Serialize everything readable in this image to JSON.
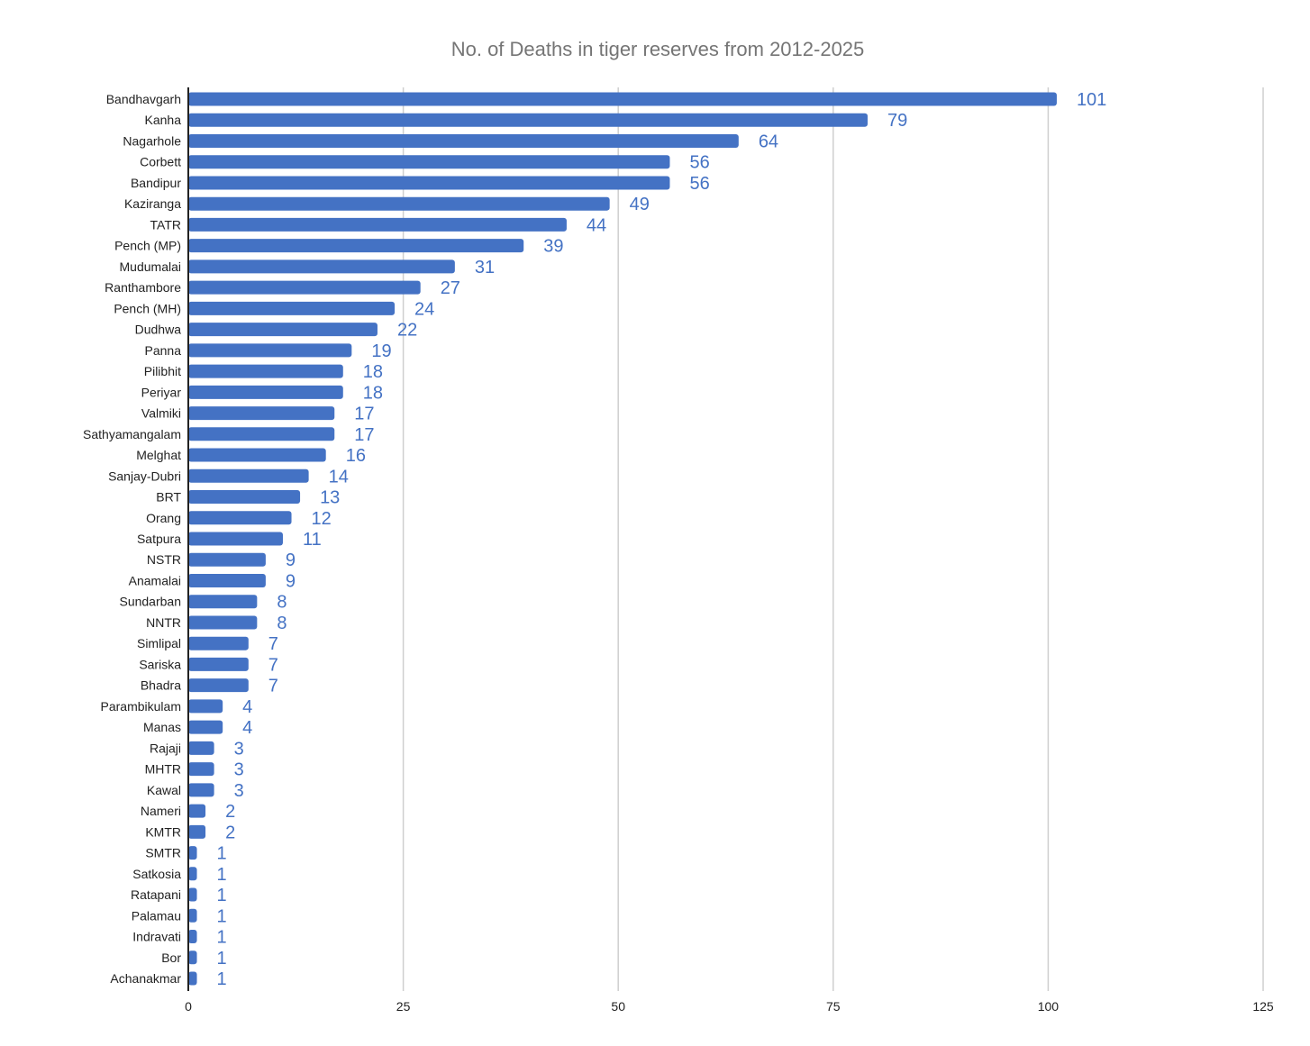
{
  "chart_data": {
    "type": "bar",
    "orientation": "horizontal",
    "title": "No. of Deaths in tiger reserves from 2012-2025",
    "xlabel": "",
    "ylabel": "",
    "xlim": [
      0,
      125
    ],
    "x_ticks": [
      0,
      25,
      50,
      75,
      100,
      125
    ],
    "grid": "vertical",
    "legend": "none",
    "bar_color": "#4472C4",
    "label_color": "#4472C4",
    "categories": [
      "Bandhavgarh",
      "Kanha",
      "Nagarhole",
      "Corbett",
      "Bandipur",
      "Kaziranga",
      "TATR",
      "Pench (MP)",
      "Mudumalai",
      "Ranthambore",
      "Pench (MH)",
      "Dudhwa",
      "Panna",
      "Pilibhit",
      "Periyar",
      "Valmiki",
      "Sathyamangalam",
      "Melghat",
      "Sanjay-Dubri",
      "BRT",
      "Orang",
      "Satpura",
      "NSTR",
      "Anamalai",
      "Sundarban",
      "NNTR",
      "Simlipal",
      "Sariska",
      "Bhadra",
      "Parambikulam",
      "Manas",
      "Rajaji",
      "MHTR",
      "Kawal",
      "Nameri",
      "KMTR",
      "SMTR",
      "Satkosia",
      "Ratapani",
      "Palamau",
      "Indravati",
      "Bor",
      "Achanakmar"
    ],
    "values": [
      101,
      79,
      64,
      56,
      56,
      49,
      44,
      39,
      31,
      27,
      24,
      22,
      19,
      18,
      18,
      17,
      17,
      16,
      14,
      13,
      12,
      11,
      9,
      9,
      8,
      8,
      7,
      7,
      7,
      4,
      4,
      3,
      3,
      3,
      2,
      2,
      1,
      1,
      1,
      1,
      1,
      1,
      1
    ]
  }
}
